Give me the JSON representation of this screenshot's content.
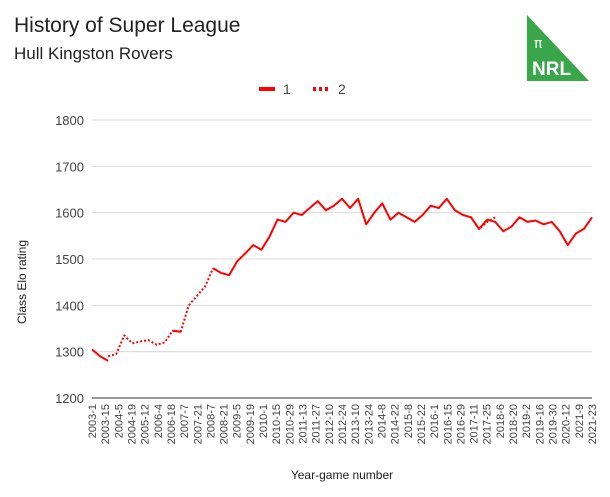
{
  "title": "History of Super League",
  "subtitle": "Hull Kingston Rovers",
  "logo": {
    "symbol": "π",
    "text": "NRL",
    "color": "#3aa64a"
  },
  "chart_data": {
    "type": "line",
    "title": "History of Super League",
    "subtitle": "Hull Kingston Rovers",
    "xlabel": "Year-game number",
    "ylabel": "Class Elo rating",
    "ylim": [
      1200,
      1800
    ],
    "yticks": [
      1200,
      1300,
      1400,
      1500,
      1600,
      1700,
      1800
    ],
    "grid": true,
    "legend_position": "top-center",
    "series_color": "#ff0000",
    "x_tick_labels": [
      "2003-1",
      "2003-15",
      "2004-5",
      "2004-19",
      "2005-12",
      "2006-4",
      "2006-18",
      "2007-7",
      "2007-21",
      "2008-7",
      "2008-21",
      "2009-5",
      "2009-19",
      "2010-1",
      "2010-15",
      "2010-29",
      "2011-13",
      "2011-27",
      "2012-10",
      "2012-24",
      "2013-10",
      "2013-24",
      "2014-8",
      "2014-22",
      "2015-8",
      "2015-22",
      "2016-1",
      "2016-15",
      "2016-29",
      "2017-11",
      "2017-25",
      "2018-6",
      "2018-20",
      "2019-2",
      "2019-16",
      "2019-30",
      "2020-12",
      "2021-9",
      "2021-23"
    ],
    "series": [
      {
        "name": "1",
        "style": "solid",
        "values": [
          1305,
          1290,
          1280,
          null,
          null,
          null,
          null,
          null,
          null,
          null,
          1345,
          1343,
          null,
          null,
          null,
          1480,
          1470,
          1465,
          1495,
          1512,
          1530,
          1520,
          1548,
          1585,
          1580,
          1600,
          1595,
          1610,
          1625,
          1605,
          1615,
          1630,
          1610,
          1630,
          1575,
          1600,
          1620,
          1585,
          1600,
          1590,
          1580,
          1595,
          1615,
          1610,
          1630,
          1605,
          1595,
          1590,
          1565,
          1585,
          1580,
          1560,
          1570,
          1590,
          1580,
          1583,
          1575,
          1580,
          1560,
          1530,
          1555,
          1565,
          1590
        ]
      },
      {
        "name": "2",
        "style": "dotted",
        "values": [
          null,
          null,
          1290,
          1295,
          1335,
          1318,
          1322,
          1325,
          1315,
          1320,
          1345,
          1343,
          1400,
          1420,
          1440,
          1480,
          null,
          null,
          null,
          null,
          null,
          null,
          null,
          null,
          null,
          null,
          null,
          null,
          null,
          null,
          null,
          null,
          null,
          null,
          null,
          null,
          null,
          null,
          null,
          null,
          null,
          null,
          null,
          null,
          null,
          null,
          null,
          1590,
          1565,
          1580,
          1590,
          null,
          null,
          null,
          null,
          null,
          null,
          null,
          null,
          null,
          null,
          null,
          null
        ]
      }
    ]
  }
}
